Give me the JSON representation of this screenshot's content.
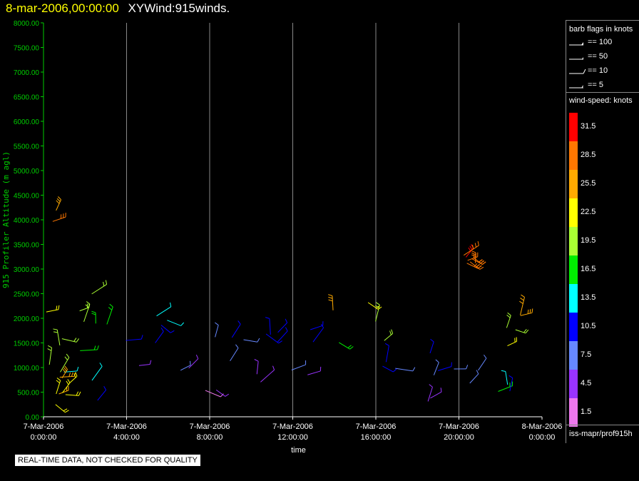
{
  "title": {
    "datetime": "8-mar-2006,00:00:00",
    "name": "XYWind:915winds."
  },
  "chart_data": {
    "type": "wind-barb-time-height",
    "xlabel": "time",
    "ylabel": "915 Profiler Altitude (m agl)",
    "xticks": [
      {
        "hour": 0,
        "date": "7-Mar-2006",
        "time": "0:00:00"
      },
      {
        "hour": 4,
        "date": "7-Mar-2006",
        "time": "4:00:00"
      },
      {
        "hour": 8,
        "date": "7-Mar-2006",
        "time": "8:00:00"
      },
      {
        "hour": 12,
        "date": "7-Mar-2006",
        "time": "12:00:00"
      },
      {
        "hour": 16,
        "date": "7-Mar-2006",
        "time": "16:00:00"
      },
      {
        "hour": 20,
        "date": "7-Mar-2006",
        "time": "20:00:00"
      },
      {
        "hour": 24,
        "date": "8-Mar-2006",
        "time": "0:00:00"
      }
    ],
    "yticks": [
      "0.00",
      "500.00",
      "1000.00",
      "1500.00",
      "2000.00",
      "2500.00",
      "3000.00",
      "3500.00",
      "4000.00",
      "4500.00",
      "5000.00",
      "5500.00",
      "6000.00",
      "6500.00",
      "7000.00",
      "7500.00",
      "8000.00"
    ],
    "xlim": [
      0,
      24
    ],
    "ylim": [
      0,
      8000
    ],
    "grid": "vertical",
    "clusters": [
      {
        "t0": 0.0,
        "t1": 1.2,
        "z0": 200,
        "z1": 4300,
        "speed_max": 31,
        "speed_min": 10
      },
      {
        "t0": 0.3,
        "t1": 1.4,
        "z0": 150,
        "z1": 900,
        "speed_max": 28,
        "speed_min": 19
      },
      {
        "t0": 1.2,
        "t1": 3.5,
        "z0": 300,
        "z1": 2600,
        "speed_max": 25,
        "speed_min": 7
      },
      {
        "t0": 3.0,
        "t1": 7.5,
        "z0": 400,
        "z1": 2100,
        "speed_max": 16,
        "speed_min": 1
      },
      {
        "t0": 7.5,
        "t1": 10.5,
        "z0": 300,
        "z1": 2100,
        "speed_max": 14,
        "speed_min": 1
      },
      {
        "t0": 10.5,
        "t1": 13.0,
        "z0": 500,
        "z1": 1800,
        "speed_max": 12,
        "speed_min": 4
      },
      {
        "t0": 12.5,
        "t1": 17.5,
        "z0": 600,
        "z1": 2500,
        "speed_max": 31,
        "speed_min": 4
      },
      {
        "t0": 18.5,
        "t1": 21.0,
        "z0": 200,
        "z1": 1300,
        "speed_max": 12,
        "speed_min": 1
      },
      {
        "t0": 21.0,
        "t1": 23.0,
        "z0": 400,
        "z1": 2500,
        "speed_max": 31,
        "speed_min": 10
      },
      {
        "t0": 20.2,
        "t1": 20.9,
        "z0": 3100,
        "z1": 3300,
        "speed_max": 31,
        "speed_min": 28
      }
    ]
  },
  "legend": {
    "barb_title": "barb flags in knots",
    "barbs": [
      {
        "label": "== 100",
        "kind": "flag100"
      },
      {
        "label": "== 50",
        "kind": "flag50"
      },
      {
        "label": "== 10",
        "kind": "full10"
      },
      {
        "label": "== 5",
        "kind": "half5"
      }
    ],
    "speed_title": "wind-speed: knots",
    "colorbar": [
      {
        "label": "31.5",
        "color": "#ff0000"
      },
      {
        "label": "28.5",
        "color": "#ff7700"
      },
      {
        "label": "25.5",
        "color": "#ffaa00"
      },
      {
        "label": "22.5",
        "color": "#ffff00"
      },
      {
        "label": "19.5",
        "color": "#aaff33"
      },
      {
        "label": "16.5",
        "color": "#00ee00"
      },
      {
        "label": "13.5",
        "color": "#00ffff"
      },
      {
        "label": "10.5",
        "color": "#0000ff"
      },
      {
        "label": "7.5",
        "color": "#6688ff"
      },
      {
        "label": "4.5",
        "color": "#9933ff"
      },
      {
        "label": "1.5",
        "color": "#ee77ee"
      }
    ],
    "source": "iss-mapr/prof915h"
  },
  "notice": "REAL-TIME DATA, NOT CHECKED FOR QUALITY",
  "colors": {
    "axis": "#00cc00",
    "grid": "#888888",
    "title_date": "#ffff00"
  }
}
